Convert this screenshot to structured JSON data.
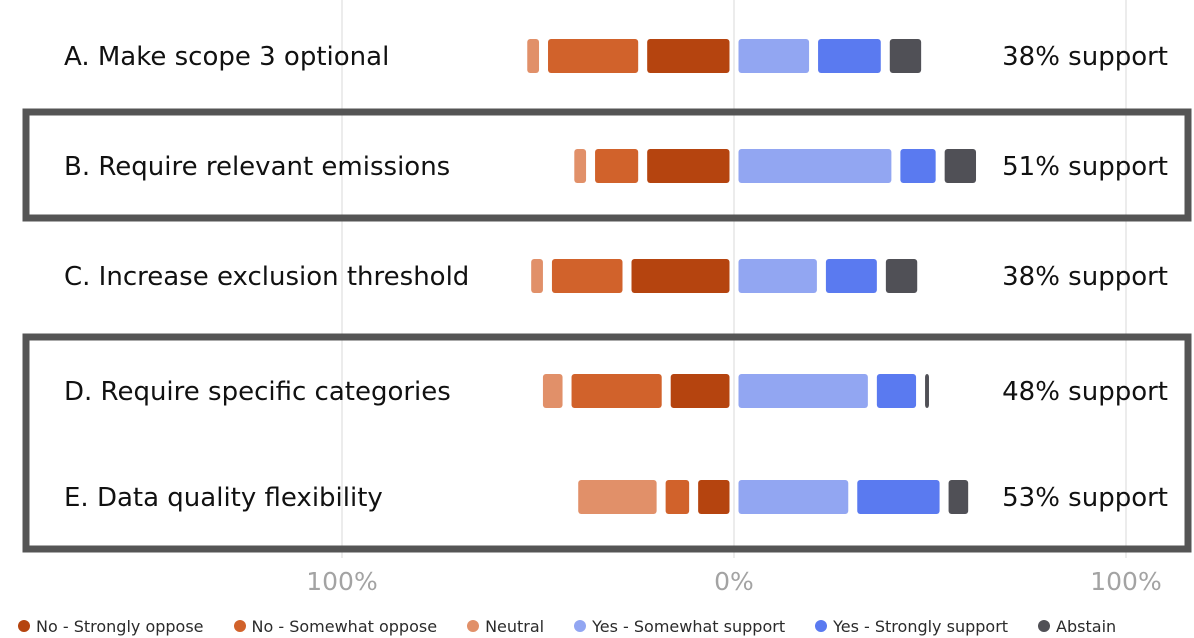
{
  "chart_data": {
    "type": "bar",
    "subtype": "diverging-stacked",
    "title": "",
    "categories": [
      "A. Make scope 3 optional",
      "B. Require relevant emissions",
      "C. Increase exclusion threshold",
      "D. Require specific categories",
      "E. Data quality flexibility"
    ],
    "support_labels": [
      "38% support",
      "51% support",
      "38% support",
      "48% support",
      "53% support"
    ],
    "highlighted_groups": [
      [
        "B. Require relevant emissions"
      ],
      [
        "D. Require specific categories",
        "E. Data quality flexibility"
      ]
    ],
    "series": [
      {
        "name": "No - Strongly oppose",
        "color": "#b5440f",
        "side": "negative",
        "values": [
          21,
          21,
          25,
          15,
          8
        ]
      },
      {
        "name": "No - Somewhat oppose",
        "color": "#d1622b",
        "side": "negative",
        "values": [
          23,
          11,
          18,
          23,
          6
        ]
      },
      {
        "name": "Neutral",
        "color": "#e19069",
        "side": "negative",
        "values": [
          3,
          3,
          3,
          5,
          20
        ]
      },
      {
        "name": "Yes - Somewhat support",
        "color": "#92a6f2",
        "side": "positive",
        "values": [
          18,
          39,
          20,
          33,
          28
        ]
      },
      {
        "name": "Yes - Strongly support",
        "color": "#5a7af0",
        "side": "positive",
        "values": [
          16,
          9,
          13,
          10,
          21
        ]
      },
      {
        "name": "Abstain",
        "color": "#505056",
        "side": "positive",
        "values": [
          8,
          8,
          8,
          1,
          5
        ]
      }
    ],
    "xlim": [
      -100,
      100
    ],
    "ticks": [
      {
        "value": -100,
        "label": "100%"
      },
      {
        "value": 0,
        "label": "0%"
      },
      {
        "value": 100,
        "label": "100%"
      }
    ],
    "grid": true,
    "legend": "bottom"
  }
}
